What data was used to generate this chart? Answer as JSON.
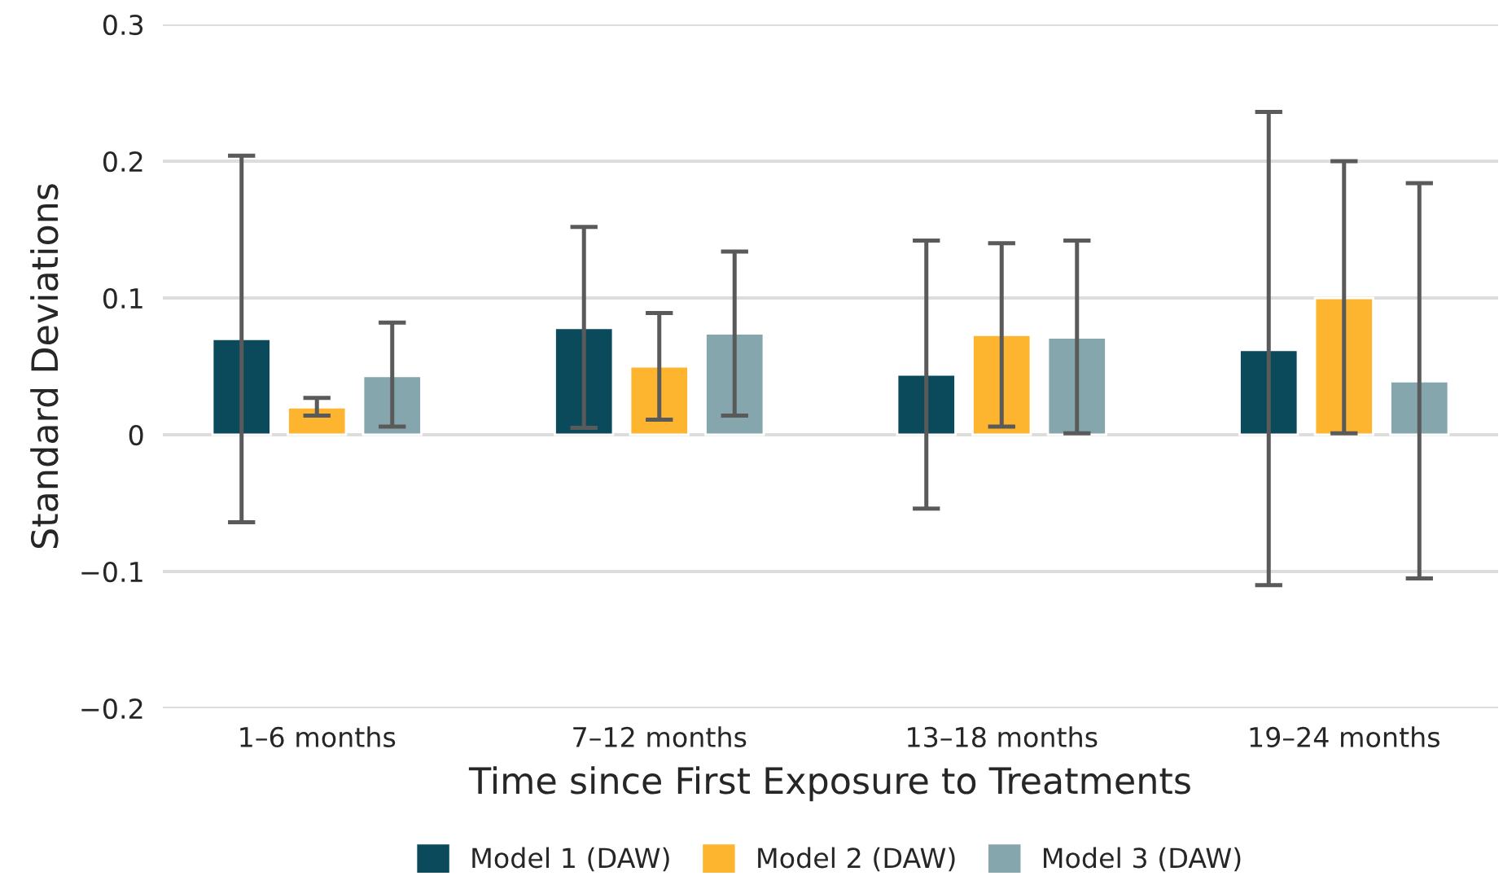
{
  "chart_data": {
    "type": "bar",
    "xlabel": "Time since First Exposure to Treatments",
    "ylabel": "Standard Deviations",
    "categories": [
      "1–6 months",
      "7–12 months",
      "13–18 months",
      "19–24 months"
    ],
    "series": [
      {
        "name": "Model 1 (DAW)",
        "color": "#0b4a5a",
        "values": [
          0.07,
          0.078,
          0.044,
          0.062
        ],
        "errors": [
          [
            -0.064,
            0.204
          ],
          [
            0.005,
            0.152
          ],
          [
            -0.054,
            0.142
          ],
          [
            -0.11,
            0.236
          ]
        ]
      },
      {
        "name": "Model 2 (DAW)",
        "color": "#fdb52f",
        "values": [
          0.02,
          0.05,
          0.073,
          0.1
        ],
        "errors": [
          [
            0.014,
            0.027
          ],
          [
            0.011,
            0.089
          ],
          [
            0.006,
            0.14
          ],
          [
            0.001,
            0.2
          ]
        ]
      },
      {
        "name": "Model 3 (DAW)",
        "color": "#86a6ad",
        "values": [
          0.043,
          0.074,
          0.071,
          0.039
        ],
        "errors": [
          [
            0.006,
            0.082
          ],
          [
            0.014,
            0.134
          ],
          [
            0.001,
            0.142
          ],
          [
            -0.105,
            0.184
          ]
        ]
      }
    ],
    "ylim": [
      -0.2,
      0.3
    ],
    "yticks": [
      {
        "value": -0.2,
        "label": "−0.2"
      },
      {
        "value": -0.1,
        "label": "−0.1"
      },
      0,
      0.1,
      0.2,
      0.3
    ],
    "grid": "y",
    "legend": "bottom"
  }
}
